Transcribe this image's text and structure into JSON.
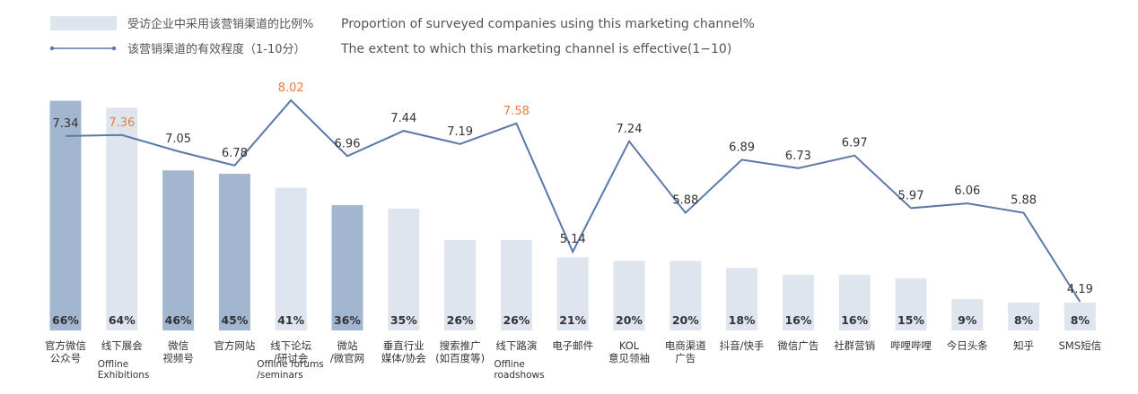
{
  "legend": {
    "bar_cn": "受访企业中采用该营销渠道的比例%",
    "bar_en": "Proportion of surveyed companies using this marketing channel%",
    "line_cn": "该营销渠道的有效程度（1-10分）",
    "line_en": "The extent to which this marketing channel is effective(1−10)"
  },
  "colors": {
    "bar_dark": "#a3b6d0",
    "bar_light": "#dfe5ef",
    "line": "#5a78a8",
    "highlight_label": "#f07a3a",
    "normal_label": "#333333"
  },
  "chart_data": {
    "type": "bar",
    "categories": [
      [
        "官方微信",
        "公众号"
      ],
      [
        "线下展会"
      ],
      [
        "微信",
        "视频号"
      ],
      [
        "官方网站"
      ],
      [
        "线下论坛",
        "/研讨会"
      ],
      [
        "微站",
        "/微官网"
      ],
      [
        "垂直行业",
        "媒体/协会"
      ],
      [
        "搜索推广",
        "(如百度等)"
      ],
      [
        "线下路演"
      ],
      [
        "电子邮件"
      ],
      [
        "KOL",
        "意见领袖"
      ],
      [
        "电商渠道",
        "广告"
      ],
      [
        "抖音/快手"
      ],
      [
        "微信广告"
      ],
      [
        "社群营销"
      ],
      [
        "哔哩哔哩"
      ],
      [
        "今日头条"
      ],
      [
        "知乎"
      ],
      [
        "SMS短信"
      ]
    ],
    "category_en": [
      [],
      [
        "Offline",
        "Exhibitions"
      ],
      [],
      [],
      [
        "Offline forums",
        "/seminars"
      ],
      [],
      [],
      [],
      [
        "Offline",
        "roadshows"
      ],
      [],
      [],
      [],
      [],
      [],
      [],
      [],
      [],
      [],
      []
    ],
    "series": [
      {
        "type": "bar",
        "values": [
          66,
          64,
          46,
          45,
          41,
          36,
          35,
          26,
          26,
          21,
          20,
          20,
          18,
          16,
          16,
          15,
          9,
          8,
          8
        ],
        "labels": [
          "66%",
          "64%",
          "46%",
          "45%",
          "41%",
          "36%",
          "35%",
          "26%",
          "26%",
          "21%",
          "20%",
          "20%",
          "18%",
          "16%",
          "16%",
          "15%",
          "9%",
          "8%",
          "8%"
        ],
        "shade": [
          "dark",
          "light",
          "dark",
          "dark",
          "light",
          "dark",
          "light",
          "light",
          "light",
          "light",
          "light",
          "light",
          "light",
          "light",
          "light",
          "light",
          "light",
          "light",
          "light"
        ]
      },
      {
        "type": "line",
        "values": [
          7.34,
          7.36,
          7.05,
          6.78,
          8.02,
          6.96,
          7.44,
          7.19,
          7.58,
          5.14,
          7.24,
          5.88,
          6.89,
          6.73,
          6.97,
          5.97,
          6.06,
          5.88,
          4.19
        ],
        "labels": [
          "7.34",
          "7.36",
          "7.05",
          "6.78",
          "8.02",
          "6.96",
          "7.44",
          "7.19",
          "7.58",
          "5.14",
          "7.24",
          "5.88",
          "6.89",
          "6.73",
          "6.97",
          "5.97",
          "6.06",
          "5.88",
          "4.19"
        ],
        "highlight": [
          false,
          true,
          false,
          false,
          true,
          false,
          false,
          false,
          true,
          false,
          false,
          false,
          false,
          false,
          false,
          false,
          false,
          false,
          false
        ]
      }
    ],
    "ylim": [
      0,
      70
    ],
    "y2lim": [
      4,
      8.5
    ],
    "legend_position": "top-left",
    "grid": false
  }
}
